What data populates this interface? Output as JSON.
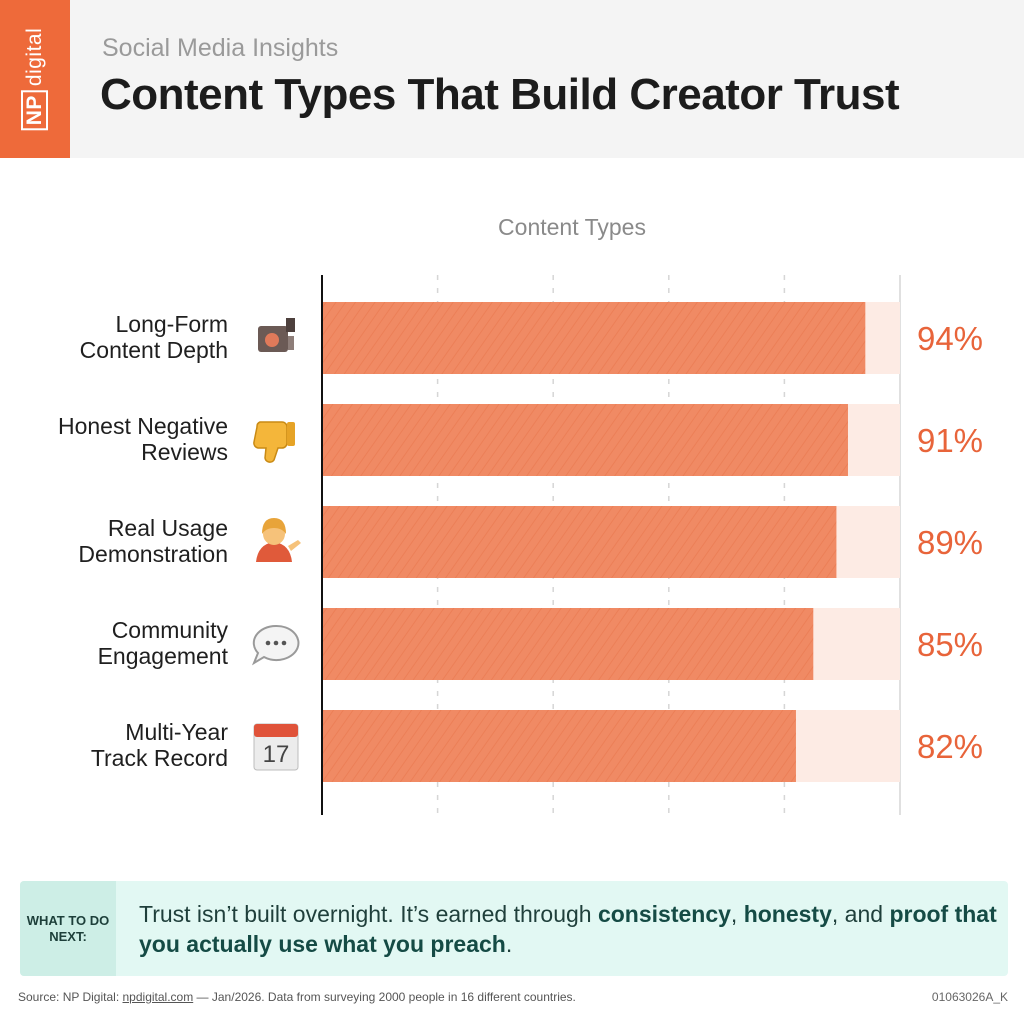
{
  "header": {
    "logo_text_np": "NP",
    "logo_text_rest": "digital",
    "subtitle": "Social Media Insights",
    "title": "Content Types That Build Creator Trust"
  },
  "colors": {
    "accent": "#ee6a3a",
    "bar": "#f08a64",
    "track": "#fdebe4",
    "value": "#e8643a"
  },
  "chart_data": {
    "type": "bar",
    "orientation": "horizontal",
    "title": "Content Types",
    "categories": [
      [
        "Long-Form",
        "Content Depth"
      ],
      [
        "Honest Negative",
        "Reviews"
      ],
      [
        "Real Usage",
        "Demonstration"
      ],
      [
        "Community",
        "Engagement"
      ],
      [
        "Multi-Year",
        "Track Record"
      ]
    ],
    "icons": [
      "video-camera-icon",
      "thumbs-down-icon",
      "person-presenting-icon",
      "speech-bubble-icon",
      "calendar-icon"
    ],
    "values": [
      94,
      91,
      89,
      85,
      82
    ],
    "value_labels": [
      "94%",
      "91%",
      "89%",
      "85%",
      "82%"
    ],
    "xlim": [
      0,
      100
    ],
    "grid": true
  },
  "callout": {
    "tag": "WHAT TO DO NEXT:",
    "text_a": "Trust isn’t built overnight. It’s earned through ",
    "bold_a": "consistency",
    "text_b": ", ",
    "bold_b": "honesty",
    "text_c": ", and ",
    "bold_c": "proof that you actually use what you preach",
    "text_d": "."
  },
  "footer": {
    "source_prefix": "Source: NP Digital: ",
    "source_link": "npdigital.com",
    "source_rest": " — Jan/2026. Data from surveying 2000 people in 16 different countries.",
    "code": "01063026A_K"
  }
}
